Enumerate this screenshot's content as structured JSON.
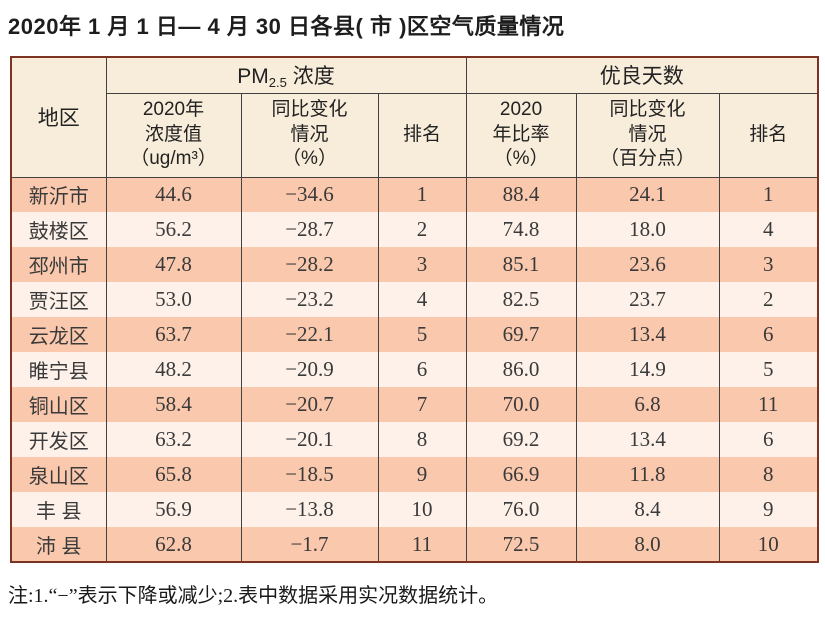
{
  "title": "2020年 1 月 1 日— 4 月 30 日各县( 市 )区空气质量情况",
  "table": {
    "group_headers": {
      "region": "地区",
      "pm25_prefix": "PM",
      "pm25_sub": "2.5",
      "pm25_suffix": " 浓度",
      "good_days": "优良天数"
    },
    "columns": {
      "pm_value": "2020年\n浓度值\n（ug/m³）",
      "pm_change": "同比变化\n情况\n（%）",
      "pm_rank": "排名",
      "gd_ratio": "2020\n年比率\n（%）",
      "gd_change": "同比变化\n情况\n（百分点）",
      "gd_rank": "排名"
    },
    "rows": [
      {
        "region": "新沂市",
        "pm_value": "44.6",
        "pm_change": "−34.6",
        "pm_rank": "1",
        "gd_ratio": "88.4",
        "gd_change": "24.1",
        "gd_rank": "1"
      },
      {
        "region": "鼓楼区",
        "pm_value": "56.2",
        "pm_change": "−28.7",
        "pm_rank": "2",
        "gd_ratio": "74.8",
        "gd_change": "18.0",
        "gd_rank": "4"
      },
      {
        "region": "邳州市",
        "pm_value": "47.8",
        "pm_change": "−28.2",
        "pm_rank": "3",
        "gd_ratio": "85.1",
        "gd_change": "23.6",
        "gd_rank": "3"
      },
      {
        "region": "贾汪区",
        "pm_value": "53.0",
        "pm_change": "−23.2",
        "pm_rank": "4",
        "gd_ratio": "82.5",
        "gd_change": "23.7",
        "gd_rank": "2"
      },
      {
        "region": "云龙区",
        "pm_value": "63.7",
        "pm_change": "−22.1",
        "pm_rank": "5",
        "gd_ratio": "69.7",
        "gd_change": "13.4",
        "gd_rank": "6"
      },
      {
        "region": "睢宁县",
        "pm_value": "48.2",
        "pm_change": "−20.9",
        "pm_rank": "6",
        "gd_ratio": "86.0",
        "gd_change": "14.9",
        "gd_rank": "5"
      },
      {
        "region": "铜山区",
        "pm_value": "58.4",
        "pm_change": "−20.7",
        "pm_rank": "7",
        "gd_ratio": "70.0",
        "gd_change": "6.8",
        "gd_rank": "11"
      },
      {
        "region": "开发区",
        "pm_value": "63.2",
        "pm_change": "−20.1",
        "pm_rank": "8",
        "gd_ratio": "69.2",
        "gd_change": "13.4",
        "gd_rank": "6"
      },
      {
        "region": "泉山区",
        "pm_value": "65.8",
        "pm_change": "−18.5",
        "pm_rank": "9",
        "gd_ratio": "66.9",
        "gd_change": "11.8",
        "gd_rank": "8"
      },
      {
        "region": "丰 县",
        "pm_value": "56.9",
        "pm_change": "−13.8",
        "pm_rank": "10",
        "gd_ratio": "76.0",
        "gd_change": "8.4",
        "gd_rank": "9"
      },
      {
        "region": "沛 县",
        "pm_value": "62.8",
        "pm_change": "−1.7",
        "pm_rank": "11",
        "gd_ratio": "72.5",
        "gd_change": "8.0",
        "gd_rank": "10"
      }
    ]
  },
  "note": "注:1.“−”表示下降或减少;2.表中数据采用实况数据统计。",
  "colors": {
    "row_salmon": "#f9c8ad",
    "row_light": "#fdf1e9",
    "header_bg": "#f8edda",
    "border_outer": "#7c3322",
    "border_inner": "#414141",
    "title_text": "#1d1d1d",
    "body_text": "#3a3a3a"
  }
}
